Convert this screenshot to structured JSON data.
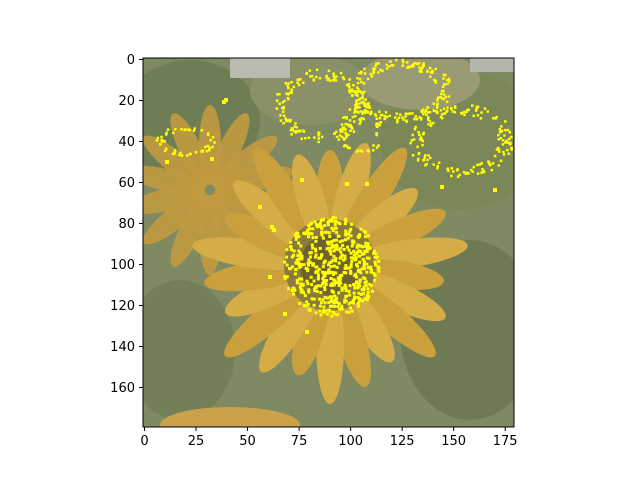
{
  "figure": {
    "image_subject": "sunflower-photo-with-yellow-edge-overlay",
    "overlay_color": "#ffff00",
    "frame_color": "#000000"
  },
  "chart_data": {
    "type": "image",
    "xlim": [
      0,
      180
    ],
    "ylim": [
      180,
      0
    ],
    "x_ticks": [
      0,
      25,
      50,
      75,
      100,
      125,
      150,
      175
    ],
    "y_ticks": [
      0,
      20,
      40,
      60,
      80,
      100,
      120,
      140,
      160
    ],
    "x_tick_labels": [
      "0",
      "25",
      "50",
      "75",
      "100",
      "125",
      "150",
      "175"
    ],
    "y_tick_labels": [
      "0",
      "20",
      "40",
      "60",
      "80",
      "100",
      "120",
      "140",
      "160"
    ],
    "y_inverted": true,
    "grid": false
  }
}
